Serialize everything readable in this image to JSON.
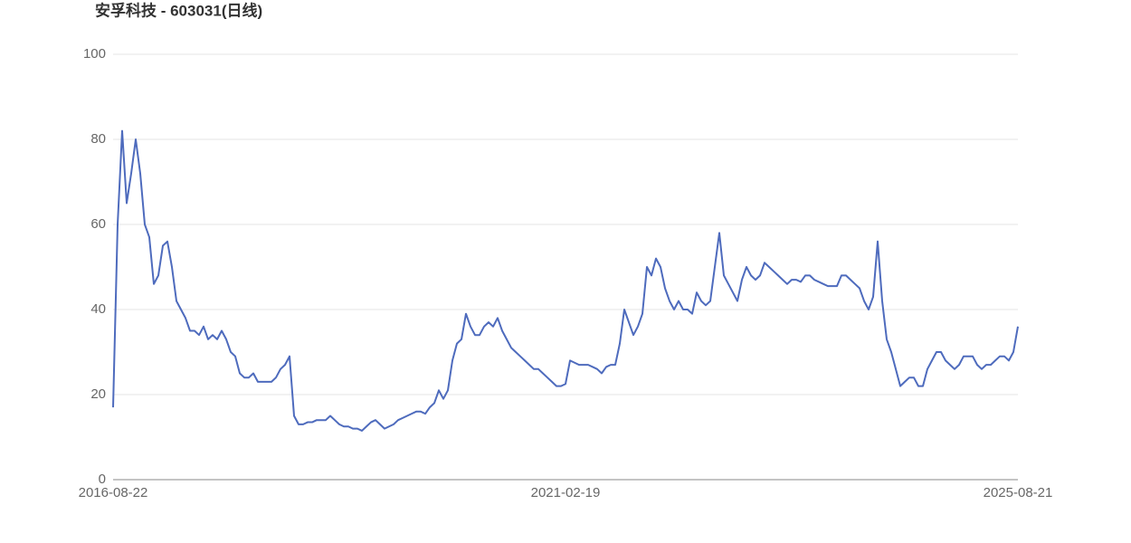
{
  "chart_data": {
    "type": "line",
    "title": "安孚科技 - 603031(日线)",
    "color": "#4e6bbd",
    "grid": true,
    "ylim": [
      0,
      100
    ],
    "yticks": [
      0,
      20,
      40,
      60,
      80,
      100
    ],
    "categories": [
      "2016-08-22",
      null,
      null,
      null,
      null,
      null,
      null,
      null,
      null,
      null,
      null,
      null,
      null,
      null,
      null,
      null,
      null,
      null,
      null,
      null,
      null,
      null,
      null,
      null,
      null,
      null,
      null,
      null,
      null,
      null,
      null,
      null,
      null,
      null,
      null,
      null,
      null,
      null,
      null,
      null,
      null,
      null,
      null,
      null,
      null,
      null,
      null,
      null,
      null,
      null,
      null,
      null,
      null,
      null,
      null,
      null,
      null,
      null,
      null,
      null,
      null,
      null,
      null,
      null,
      null,
      null,
      null,
      null,
      null,
      null,
      null,
      null,
      null,
      null,
      null,
      null,
      null,
      null,
      null,
      null,
      null,
      null,
      null,
      null,
      null,
      null,
      null,
      null,
      null,
      null,
      null,
      null,
      null,
      null,
      null,
      null,
      null,
      null,
      null,
      null,
      "2021-02-19",
      null,
      null,
      null,
      null,
      null,
      null,
      null,
      null,
      null,
      null,
      null,
      null,
      null,
      null,
      null,
      null,
      null,
      null,
      null,
      null,
      null,
      null,
      null,
      null,
      null,
      null,
      null,
      null,
      null,
      null,
      null,
      null,
      null,
      null,
      null,
      null,
      null,
      null,
      null,
      null,
      null,
      null,
      null,
      null,
      null,
      null,
      null,
      null,
      null,
      null,
      null,
      null,
      null,
      null,
      null,
      null,
      null,
      null,
      null,
      null,
      null,
      null,
      null,
      null,
      null,
      null,
      null,
      null,
      null,
      null,
      null,
      null,
      null,
      null,
      null,
      null,
      null,
      null,
      null,
      null,
      null,
      null,
      null,
      null,
      null,
      null,
      null,
      null,
      null,
      null,
      null,
      null,
      null,
      null,
      null,
      null,
      null,
      null,
      null,
      "2025-08-21"
    ],
    "values": [
      17,
      60,
      82,
      65,
      72,
      80,
      72,
      60,
      57,
      46,
      48,
      55,
      56,
      50,
      42,
      40,
      38,
      35,
      35,
      34,
      36,
      33,
      34,
      33,
      35,
      33,
      30,
      29,
      25,
      24,
      24,
      25,
      23,
      23,
      23,
      23,
      24,
      26,
      27,
      29,
      15,
      13,
      13,
      13.5,
      13.5,
      14,
      14,
      14,
      15,
      14,
      13,
      12.5,
      12.5,
      12,
      12,
      11.5,
      12.5,
      13.5,
      14,
      13,
      12,
      12.5,
      13,
      14,
      14.5,
      15,
      15.5,
      16,
      16,
      15.5,
      17,
      18,
      21,
      19,
      21,
      28,
      32,
      33,
      39,
      36,
      34,
      34,
      36,
      37,
      36,
      38,
      35,
      33,
      31,
      30,
      29,
      28,
      27,
      26,
      26,
      25,
      24,
      23,
      22,
      22,
      22.5,
      28,
      27.5,
      27,
      27,
      27,
      26.5,
      26,
      25,
      26.5,
      27,
      27,
      32,
      40,
      37,
      34,
      36,
      39,
      50,
      48,
      52,
      50,
      45,
      42,
      40,
      42,
      40,
      40,
      39,
      44,
      42,
      41,
      42,
      50,
      58,
      48,
      46,
      44,
      42,
      47,
      50,
      48,
      47,
      48,
      51,
      50,
      49,
      48,
      47,
      46,
      47,
      47,
      46.5,
      48,
      48,
      47,
      46.5,
      46,
      45.5,
      45.5,
      45.5,
      48,
      48,
      47,
      46,
      45,
      42,
      40,
      43,
      56,
      42,
      33,
      30,
      26,
      22,
      23,
      24,
      24,
      22,
      22,
      26,
      28,
      30,
      30,
      28,
      27,
      26,
      27,
      29,
      29,
      29,
      27,
      26,
      27,
      27,
      28,
      29,
      29,
      28,
      30,
      36
    ]
  }
}
